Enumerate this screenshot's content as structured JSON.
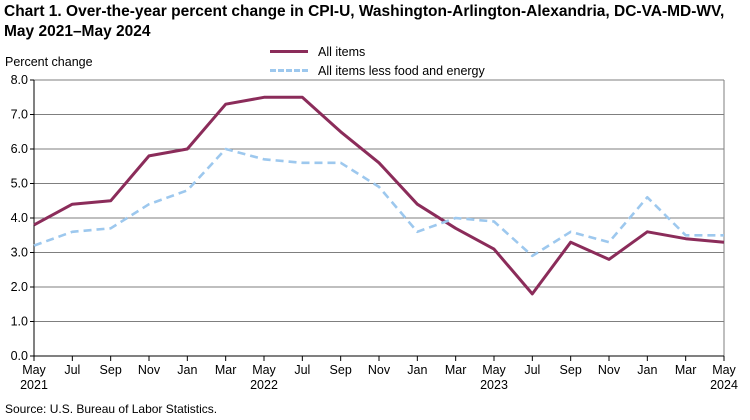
{
  "chart_data": {
    "type": "line",
    "title": "Chart 1. Over-the-year percent change in CPI-U, Washington-Arlington-Alexandria,  DC-VA-MD-WV, May 2021–May 2024",
    "ylabel": "Percent change",
    "xlabel": "",
    "ylim": [
      0.0,
      8.0
    ],
    "yticks": [
      "0.0",
      "1.0",
      "2.0",
      "3.0",
      "4.0",
      "5.0",
      "6.0",
      "7.0",
      "8.0"
    ],
    "grid": true,
    "legend_position": "top-center",
    "x_month_labels": [
      "May",
      "Jul",
      "Sep",
      "Nov",
      "Jan",
      "Mar",
      "May",
      "Jul",
      "Sep",
      "Nov",
      "Jan",
      "Mar",
      "May",
      "Jul",
      "Sep",
      "Nov",
      "Jan",
      "Mar",
      "May"
    ],
    "x_year_labels": [
      {
        "index": 0,
        "label": "2021"
      },
      {
        "index": 6,
        "label": "2022"
      },
      {
        "index": 12,
        "label": "2023"
      },
      {
        "index": 18,
        "label": "2024"
      }
    ],
    "series": [
      {
        "name": "All items",
        "color": "#8b2c5a",
        "style": "solid",
        "values": [
          3.8,
          4.4,
          4.5,
          5.8,
          6.0,
          7.3,
          7.5,
          7.5,
          6.5,
          5.6,
          4.4,
          3.7,
          3.1,
          1.8,
          3.3,
          2.8,
          3.6,
          3.4,
          3.3
        ]
      },
      {
        "name": "All items less food and energy",
        "color": "#9dc8ee",
        "style": "dashed",
        "values": [
          3.2,
          3.6,
          3.7,
          4.4,
          4.8,
          6.0,
          5.7,
          5.6,
          5.6,
          4.9,
          3.6,
          4.0,
          3.9,
          2.9,
          3.6,
          3.3,
          4.6,
          3.5,
          3.5
        ]
      }
    ],
    "source": "Source: U.S. Bureau  of Labor Statistics."
  }
}
